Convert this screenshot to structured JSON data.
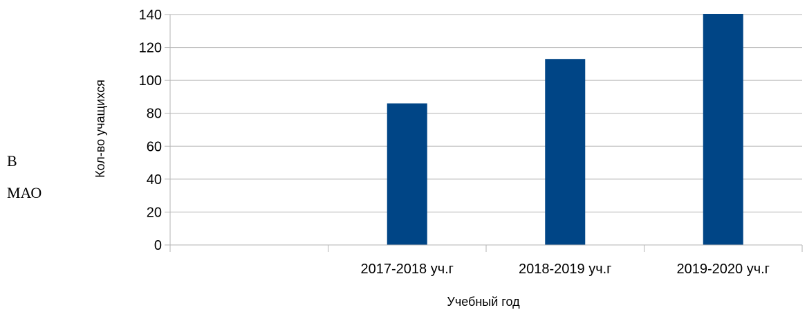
{
  "side_text": {
    "line1": "В",
    "line2": "МАО"
  },
  "chart_data": {
    "type": "bar",
    "categories": [
      "",
      "2017-2018 уч.г",
      "2018-2019 уч.г",
      "2019-2020 уч.г"
    ],
    "values": [
      null,
      86,
      113,
      145
    ],
    "xlabel": "Учебный год",
    "ylabel": "Кол-во учащихся",
    "ylim": [
      0,
      140
    ],
    "yticks": [
      0,
      20,
      40,
      60,
      80,
      100,
      120,
      140
    ],
    "grid": true,
    "legend": "none",
    "bar_color": "#004586",
    "grid_color": "#b3b3b3"
  }
}
